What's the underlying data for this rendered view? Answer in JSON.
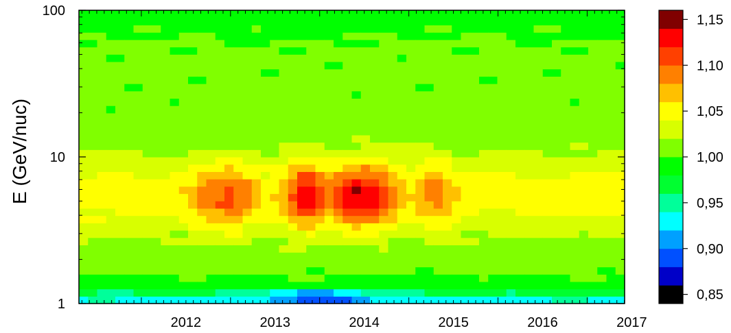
{
  "chart_data": {
    "type": "heatmap",
    "title": "",
    "xlabel": "",
    "ylabel": "E (GeV/nuc)",
    "x_axis": {
      "scale": "linear",
      "unit": "year",
      "range": [
        2011.3,
        2017.42
      ],
      "tick_labels": [
        "2012",
        "2013",
        "2014",
        "2015",
        "2016",
        "2017"
      ],
      "tick_values": [
        2012,
        2013,
        2014,
        2015,
        2016,
        2017
      ],
      "minor_ticks_per_year": 12
    },
    "y_axis": {
      "scale": "log",
      "range": [
        1,
        100
      ],
      "tick_labels": [
        "1",
        "10",
        "100"
      ],
      "tick_values": [
        1,
        10,
        100
      ],
      "minor_tick_values": [
        2,
        3,
        4,
        5,
        6,
        7,
        8,
        9,
        20,
        30,
        40,
        50,
        60,
        70,
        80,
        90
      ]
    },
    "grid": false,
    "colorbar": {
      "position": "right",
      "range": [
        0.84,
        1.16
      ],
      "tick_labels": [
        "0,85",
        "0,90",
        "0,95",
        "1,00",
        "1,05",
        "1,10",
        "1,15"
      ],
      "tick_values": [
        0.85,
        0.9,
        0.95,
        1.0,
        1.05,
        1.1,
        1.15
      ],
      "colors": [
        "#000000",
        "#0000c8",
        "#0050ff",
        "#00a0ff",
        "#00ffff",
        "#00ff9a",
        "#00ff30",
        "#00ff00",
        "#80ff00",
        "#d8ff00",
        "#ffff00",
        "#ffc000",
        "#ff8000",
        "#ff4000",
        "#ff0000",
        "#800000"
      ]
    },
    "data_description_grid": {
      "x_bins": 60,
      "y_bins": 40,
      "base_value_at_low_energy": 0.93,
      "base_value_mid": 1.01,
      "features": [
        {
          "center_year": 2012.75,
          "center_energy": 5.5,
          "peak": 1.085
        },
        {
          "center_year": 2013.05,
          "center_energy": 5.5,
          "peak": 1.1
        },
        {
          "center_year": 2013.85,
          "center_energy": 5.5,
          "peak": 1.135
        },
        {
          "center_year": 2014.35,
          "center_energy": 5.5,
          "peak": 1.125
        },
        {
          "center_year": 2014.65,
          "center_energy": 5.5,
          "peak": 1.115
        },
        {
          "center_year": 2015.3,
          "center_energy": 5.5,
          "peak": 1.09
        }
      ]
    }
  }
}
